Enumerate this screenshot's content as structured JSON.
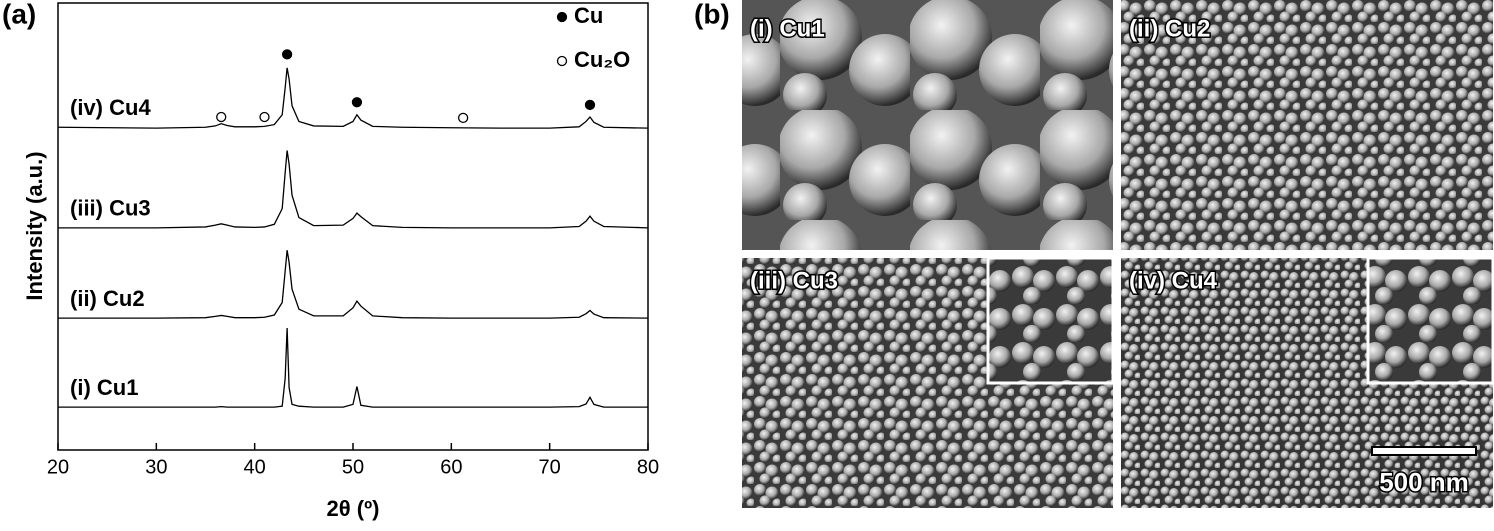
{
  "chart_data": {
    "type": "line",
    "panel_label": "(a)",
    "x_label": "2θ (º)",
    "y_label": "Intensity (a.u.)",
    "xlim": [
      20,
      80
    ],
    "ylim": [
      0,
      100
    ],
    "xticks": [
      20,
      30,
      40,
      50,
      60,
      70,
      80
    ],
    "x": [
      20,
      30,
      35,
      36,
      36.6,
      37.2,
      38,
      40,
      41,
      42,
      42.8,
      43.1,
      43.3,
      43.5,
      43.8,
      44.5,
      46,
      49,
      50,
      50.4,
      50.8,
      52,
      55,
      60,
      65,
      70,
      73,
      73.7,
      74.1,
      74.5,
      75.5,
      80
    ],
    "series": [
      {
        "name": "(i) Cu1",
        "color": "#000000",
        "values": [
          9.6,
          9.6,
          9.6,
          9.6,
          9.7,
          9.6,
          9.6,
          9.6,
          9.6,
          9.6,
          9.8,
          16,
          27.3,
          14,
          10.2,
          9.8,
          9.6,
          9.6,
          10.2,
          14.2,
          10,
          9.6,
          9.6,
          9.6,
          9.6,
          9.6,
          9.7,
          10.3,
          11.8,
          10.2,
          9.6,
          9.6
        ]
      },
      {
        "name": "(ii) Cu2",
        "color": "#000000",
        "values": [
          29.5,
          29.5,
          29.6,
          29.9,
          30.1,
          29.9,
          29.6,
          29.6,
          29.7,
          30.2,
          33,
          40,
          44.7,
          42,
          36,
          31.5,
          30,
          30,
          31.8,
          33.3,
          32.2,
          30,
          29.6,
          29.5,
          29.5,
          29.5,
          29.7,
          30.5,
          31.2,
          30.4,
          29.6,
          29.5
        ]
      },
      {
        "name": "(iii) Cu3",
        "color": "#000000",
        "values": [
          49.7,
          49.7,
          49.9,
          50.3,
          50.6,
          50.3,
          49.9,
          49.8,
          49.9,
          50.5,
          54,
          62,
          67,
          64,
          57,
          52,
          50.2,
          50.3,
          51.8,
          53,
          52.2,
          50.2,
          49.8,
          49.7,
          49.7,
          49.7,
          50,
          51.2,
          52.3,
          51.2,
          50,
          49.7
        ]
      },
      {
        "name": "(iv) Cu4",
        "color": "#000000",
        "values": [
          72.2,
          72,
          72.2,
          72.5,
          73,
          72.6,
          72.3,
          72.3,
          72.4,
          72.8,
          75,
          81,
          85.5,
          83,
          77,
          73.5,
          72.5,
          72.4,
          73.5,
          75,
          73.8,
          72.4,
          72.2,
          72.1,
          72,
          72,
          72.3,
          73.5,
          74.5,
          73.3,
          72.2,
          72
        ]
      }
    ],
    "legend": [
      {
        "label": "Cu",
        "filled": true
      },
      {
        "label": "Cu₂O",
        "filled": false
      }
    ],
    "peak_markers": [
      {
        "x": 43.3,
        "y": 88.5,
        "filled": true
      },
      {
        "x": 50.4,
        "y": 77.8,
        "filled": true
      },
      {
        "x": 74.1,
        "y": 77.2,
        "filled": true
      },
      {
        "x": 36.6,
        "y": 74.5,
        "filled": false
      },
      {
        "x": 41,
        "y": 74.5,
        "filled": false
      },
      {
        "x": 61.2,
        "y": 74.3,
        "filled": false
      }
    ]
  },
  "sem": {
    "panel_label": "(b)",
    "panels": [
      {
        "label": "(i) Cu1"
      },
      {
        "label": "(ii) Cu2"
      },
      {
        "label": "(iii) Cu3"
      },
      {
        "label": "(iv) Cu4"
      }
    ],
    "scale_bar": "500 nm"
  }
}
